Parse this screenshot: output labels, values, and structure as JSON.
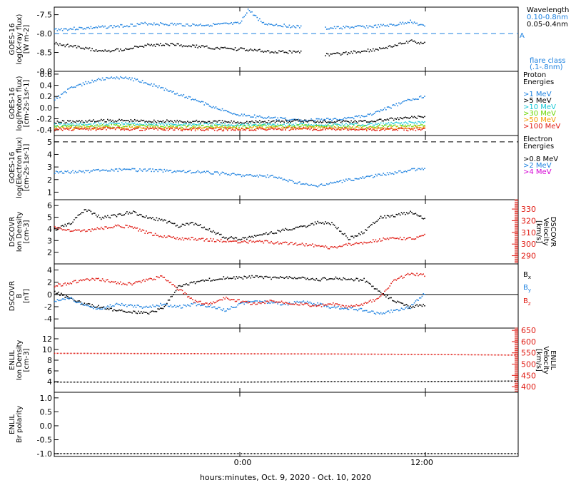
{
  "colors": {
    "black": "#000000",
    "blue": "#1e82e0",
    "cyan": "#17c8d6",
    "green": "#6ad600",
    "orange": "#f59a00",
    "red": "#e01a12",
    "magenta": "#d400d4",
    "dash": "#1e82e0",
    "axis": "#000000"
  },
  "xaxis": {
    "label": "hours:minutes, Oct.  9, 2020 - Oct. 10, 2020",
    "tick_labels": [
      "0:00",
      "12:00"
    ],
    "tick_hours": [
      0,
      12
    ],
    "range_hours": [
      -12,
      18
    ]
  },
  "chart_data": [
    {
      "id": "goes-xray",
      "type": "scatter",
      "ylabel_lines": [
        "GOES-16",
        "log(X-ray flux)",
        "[W m-2]"
      ],
      "ylim": [
        -9.0,
        -7.3
      ],
      "yticks": [
        -9.0,
        -8.5,
        -8.0,
        -7.5
      ],
      "ytick_labels": [
        "-9.0",
        "-8.5",
        "-8.0",
        "-7.5"
      ],
      "reference_line": {
        "y": -8.0,
        "label": "A",
        "style": "dashed",
        "color": "blue"
      },
      "legend_title": "Wavelength",
      "legend": [
        {
          "text": "0.10-0.8nm",
          "color": "blue"
        },
        {
          "text": "0.05-0.4nm",
          "color": "black"
        }
      ],
      "legend_note": [
        "flare class",
        "(.1-.8nm)"
      ],
      "series": [
        {
          "name": "0.10-0.8nm",
          "color": "blue",
          "x": [
            -12,
            -10.5,
            -9,
            -7.5,
            -6,
            -4.5,
            -3,
            -1.5,
            0,
            0.5,
            1.5,
            3,
            4,
            4.5,
            5.5,
            7,
            8.5,
            10,
            11,
            12
          ],
          "y": [
            -7.88,
            -7.85,
            -7.82,
            -7.78,
            -7.72,
            -7.74,
            -7.76,
            -7.75,
            -7.72,
            -7.35,
            -7.72,
            -7.78,
            -7.82,
            null,
            -7.85,
            -7.82,
            -7.8,
            -7.76,
            -7.66,
            -7.82
          ]
        },
        {
          "name": "0.05-0.4nm",
          "color": "black",
          "x": [
            -12,
            -10.5,
            -9,
            -7.5,
            -6,
            -4.5,
            -3,
            -1.5,
            0,
            1.5,
            3,
            4,
            4.5,
            5.5,
            7,
            8.5,
            10,
            11,
            12
          ],
          "y": [
            -8.25,
            -8.35,
            -8.45,
            -8.4,
            -8.3,
            -8.28,
            -8.32,
            -8.38,
            -8.4,
            -8.45,
            -8.48,
            -8.45,
            null,
            -8.55,
            -8.5,
            -8.42,
            -8.3,
            -8.18,
            -8.25
          ]
        }
      ]
    },
    {
      "id": "goes-proton",
      "type": "scatter",
      "ylabel_lines": [
        "GOES-16",
        "log(Proton flux)",
        "[cm-2s-1sr-1]"
      ],
      "ylim": [
        -0.5,
        0.65
      ],
      "yticks": [
        -0.4,
        -0.2,
        0.0,
        0.2,
        0.4,
        0.6
      ],
      "ytick_labels": [
        "-0.4",
        "-0.2",
        "0.0",
        "0.2",
        "0.4",
        "0.6"
      ],
      "legend_title": "Proton",
      "legend_title2": "Energies",
      "legend": [
        {
          "text": ">1 MeV",
          "color": "blue"
        },
        {
          "text": ">5 MeV",
          "color": "black"
        },
        {
          "text": ">10 MeV",
          "color": "cyan"
        },
        {
          "text": ">30 MeV",
          "color": "green"
        },
        {
          "text": ">50 MeV",
          "color": "orange"
        },
        {
          "text": ">100 MeV",
          "color": "red"
        }
      ],
      "series": [
        {
          "name": ">1 MeV",
          "color": "blue",
          "x": [
            -12,
            -11,
            -10,
            -9,
            -8,
            -7,
            -6,
            -5,
            -4,
            -3,
            -2,
            -1,
            0,
            2,
            4,
            6,
            8,
            9,
            10,
            11,
            12
          ],
          "y": [
            0.15,
            0.35,
            0.45,
            0.52,
            0.55,
            0.52,
            0.45,
            0.35,
            0.25,
            0.15,
            0.05,
            -0.05,
            -0.12,
            -0.18,
            -0.22,
            -0.2,
            -0.15,
            -0.05,
            0.05,
            0.15,
            0.22
          ]
        },
        {
          "name": ">5 MeV",
          "color": "black",
          "x": [
            -12,
            -8,
            -4,
            0,
            4,
            8,
            12
          ],
          "y": [
            -0.25,
            -0.22,
            -0.24,
            -0.25,
            -0.23,
            -0.24,
            -0.15
          ]
        },
        {
          "name": ">10 MeV",
          "color": "cyan",
          "x": [
            -12,
            -8,
            -4,
            0,
            4,
            8,
            12
          ],
          "y": [
            -0.3,
            -0.28,
            -0.29,
            -0.3,
            -0.29,
            -0.3,
            -0.25
          ]
        },
        {
          "name": ">30 MeV",
          "color": "green",
          "x": [
            -12,
            -8,
            -4,
            0,
            4,
            8,
            12
          ],
          "y": [
            -0.33,
            -0.32,
            -0.33,
            -0.33,
            -0.32,
            -0.33,
            -0.32
          ]
        },
        {
          "name": ">50 MeV",
          "color": "orange",
          "x": [
            -12,
            -8,
            -4,
            0,
            4,
            8,
            12
          ],
          "y": [
            -0.36,
            -0.35,
            -0.36,
            -0.36,
            -0.35,
            -0.36,
            -0.35
          ]
        },
        {
          "name": ">100 MeV",
          "color": "red",
          "x": [
            -12,
            -8,
            -4,
            0,
            4,
            8,
            12
          ],
          "y": [
            -0.38,
            -0.37,
            -0.38,
            -0.38,
            -0.37,
            -0.38,
            -0.38
          ]
        }
      ]
    },
    {
      "id": "goes-electron",
      "type": "scatter",
      "ylabel_lines": [
        "GOES-16",
        "log(Electron flux)",
        "[cm-2s-1sr-1]"
      ],
      "ylim": [
        0.4,
        5.5
      ],
      "yticks": [
        1,
        2,
        3,
        4,
        5
      ],
      "ytick_labels": [
        "1",
        "2",
        "3",
        "4",
        "5"
      ],
      "reference_line": {
        "y": 5.0,
        "style": "dashed",
        "color": "black"
      },
      "legend_title": "Electron",
      "legend_title2": "Energies",
      "legend": [
        {
          "text": ">0.8 MeV",
          "color": "black"
        },
        {
          "text": ">2 MeV",
          "color": "blue"
        },
        {
          "text": ">4 MeV",
          "color": "magenta"
        }
      ],
      "series": [
        {
          "name": ">2 MeV",
          "color": "blue",
          "x": [
            -12,
            -10,
            -8,
            -6,
            -4,
            -2,
            0,
            2,
            3,
            4,
            5,
            6,
            7,
            8,
            9,
            10,
            11,
            12
          ],
          "y": [
            2.6,
            2.7,
            2.8,
            2.8,
            2.7,
            2.6,
            2.4,
            2.3,
            2.0,
            1.7,
            1.5,
            1.8,
            2.0,
            2.2,
            2.4,
            2.6,
            2.8,
            2.9
          ]
        }
      ]
    },
    {
      "id": "dscovr-plasma",
      "type": "scatter",
      "ylabel_lines": [
        "DSCOVR",
        "Ion Density",
        "[cm-3]"
      ],
      "ylim": [
        1.0,
        6.5
      ],
      "yticks": [
        2,
        3,
        4,
        5,
        6
      ],
      "ytick_labels": [
        "2",
        "3",
        "4",
        "5",
        "6"
      ],
      "y2label_lines": [
        "DSCOVR",
        "Velocity",
        "[km/s]"
      ],
      "y2lim": [
        283,
        338
      ],
      "y2ticks": [
        290,
        300,
        310,
        320,
        330
      ],
      "y2tick_labels": [
        "290",
        "300",
        "310",
        "320",
        "330"
      ],
      "series": [
        {
          "name": "Ion Density",
          "color": "black",
          "axis": "left",
          "x": [
            -12,
            -11,
            -10,
            -9,
            -8,
            -7,
            -6,
            -5,
            -4,
            -3,
            -2,
            -1,
            0,
            1,
            2,
            3,
            4,
            5,
            6,
            7,
            8,
            9,
            10,
            11,
            12
          ],
          "y": [
            4.0,
            4.5,
            5.7,
            5.0,
            5.2,
            5.5,
            5.0,
            4.8,
            4.3,
            4.5,
            4.0,
            3.3,
            3.2,
            3.4,
            3.7,
            4.0,
            4.2,
            4.6,
            4.5,
            3.2,
            3.8,
            5.0,
            5.2,
            5.5,
            4.8
          ]
        },
        {
          "name": "Velocity",
          "color": "red",
          "axis": "right",
          "x": [
            -12,
            -11,
            -10,
            -9,
            -8,
            -7,
            -6,
            -5,
            -4,
            -3,
            -2,
            -1,
            0,
            1,
            2,
            3,
            4,
            5,
            6,
            7,
            8,
            9,
            10,
            11,
            12
          ],
          "y": [
            315,
            312,
            312,
            314,
            316,
            315,
            310,
            307,
            305,
            305,
            304,
            303,
            302,
            303,
            302,
            301,
            300,
            299,
            297,
            300,
            302,
            304,
            306,
            305,
            308
          ]
        }
      ]
    },
    {
      "id": "dscovr-mag",
      "type": "scatter",
      "ylabel_lines": [
        "DSCOVR",
        "B",
        "[nT]"
      ],
      "ylim": [
        -5.5,
        5.0
      ],
      "yticks": [
        -4,
        -2,
        0,
        2,
        4
      ],
      "ytick_labels": [
        "-4",
        "-2",
        "0",
        "2",
        "4"
      ],
      "zero_line": true,
      "legend": [
        {
          "text": "B",
          "sub": "x",
          "color": "black"
        },
        {
          "text": "B",
          "sub": "y",
          "color": "blue"
        },
        {
          "text": "B",
          "sub": "z",
          "color": "red"
        }
      ],
      "series": [
        {
          "name": "Bx",
          "color": "black",
          "x": [
            -12,
            -11,
            -10,
            -9,
            -8,
            -7,
            -6,
            -5,
            -4,
            -3,
            -2,
            -1,
            0,
            1,
            2,
            3,
            4,
            5,
            6,
            7,
            8,
            9,
            10,
            11,
            12
          ],
          "y": [
            0.5,
            -0.5,
            -1.5,
            -2.0,
            -2.5,
            -2.8,
            -3.0,
            -2.2,
            1.5,
            2.0,
            2.5,
            2.8,
            2.8,
            3.0,
            2.8,
            2.9,
            2.7,
            2.5,
            2.8,
            2.6,
            2.5,
            0.5,
            -1.0,
            -2.0,
            -1.5
          ]
        },
        {
          "name": "By",
          "color": "blue",
          "x": [
            -12,
            -11,
            -10,
            -9,
            -8,
            -7,
            -6,
            -5,
            -4,
            -3,
            -2,
            -1,
            0,
            1,
            2,
            3,
            4,
            5,
            6,
            7,
            8,
            9,
            10,
            11,
            12
          ],
          "y": [
            -1.0,
            -0.5,
            -1.8,
            -2.2,
            -1.5,
            -1.8,
            -2.0,
            -1.5,
            -2.0,
            -1.5,
            -1.8,
            -2.5,
            -1.5,
            -1.0,
            -1.3,
            -1.5,
            -1.0,
            -1.5,
            -2.0,
            -2.2,
            -2.5,
            -3.0,
            -2.5,
            -2.0,
            0.5
          ]
        },
        {
          "name": "Bz",
          "color": "red",
          "x": [
            -12,
            -11,
            -10,
            -9,
            -8,
            -7,
            -6,
            -5,
            -4,
            -3,
            -2,
            -1,
            0,
            1,
            2,
            3,
            4,
            5,
            6,
            7,
            8,
            9,
            10,
            11,
            12
          ],
          "y": [
            1.5,
            2.0,
            2.5,
            2.5,
            2.0,
            1.8,
            2.5,
            3.0,
            1.0,
            -1.0,
            -1.5,
            -0.5,
            -1.0,
            -1.5,
            -1.0,
            -1.2,
            -1.5,
            -1.8,
            -1.5,
            -2.0,
            -1.5,
            -0.5,
            2.5,
            3.5,
            3.2
          ]
        }
      ]
    },
    {
      "id": "enlil-plasma",
      "type": "line",
      "ylabel_lines": [
        "ENLIL",
        "Ion Density",
        "[cm-3]"
      ],
      "ylim": [
        2.0,
        14.0
      ],
      "yticks": [
        4,
        6,
        8,
        10,
        12
      ],
      "ytick_labels": [
        "4",
        "6",
        "8",
        "10",
        "12"
      ],
      "y2label_lines": [
        "ENLIL",
        "Velocity",
        "[km/s]"
      ],
      "y2lim": [
        375,
        660
      ],
      "y2ticks": [
        400,
        450,
        500,
        550,
        600,
        650
      ],
      "y2tick_labels": [
        "400",
        "450",
        "500",
        "550",
        "600",
        "650"
      ],
      "series": [
        {
          "name": "Ion Density",
          "color": "black",
          "axis": "left",
          "x": [
            -12,
            -6,
            0,
            6,
            12,
            18
          ],
          "y": [
            3.9,
            3.9,
            3.9,
            4.0,
            4.0,
            4.1
          ]
        },
        {
          "name": "Velocity",
          "color": "red",
          "axis": "right",
          "x": [
            -12,
            -6,
            0,
            6,
            12,
            18
          ],
          "y": [
            548,
            547,
            546,
            545,
            543,
            540
          ]
        }
      ]
    },
    {
      "id": "enlil-polarity",
      "type": "line",
      "ylabel_lines": [
        "ENLIL",
        "Br polarity"
      ],
      "ylim": [
        -1.1,
        1.2
      ],
      "yticks": [
        -1.0,
        -0.5,
        0.0,
        0.5,
        1.0
      ],
      "ytick_labels": [
        "-1.0",
        "-0.5",
        "0.0",
        "0.5",
        "1.0"
      ],
      "series": [
        {
          "name": "Br polarity",
          "color": "black",
          "x": [
            -12,
            18
          ],
          "y": [
            -1.0,
            -1.0
          ]
        }
      ]
    }
  ]
}
